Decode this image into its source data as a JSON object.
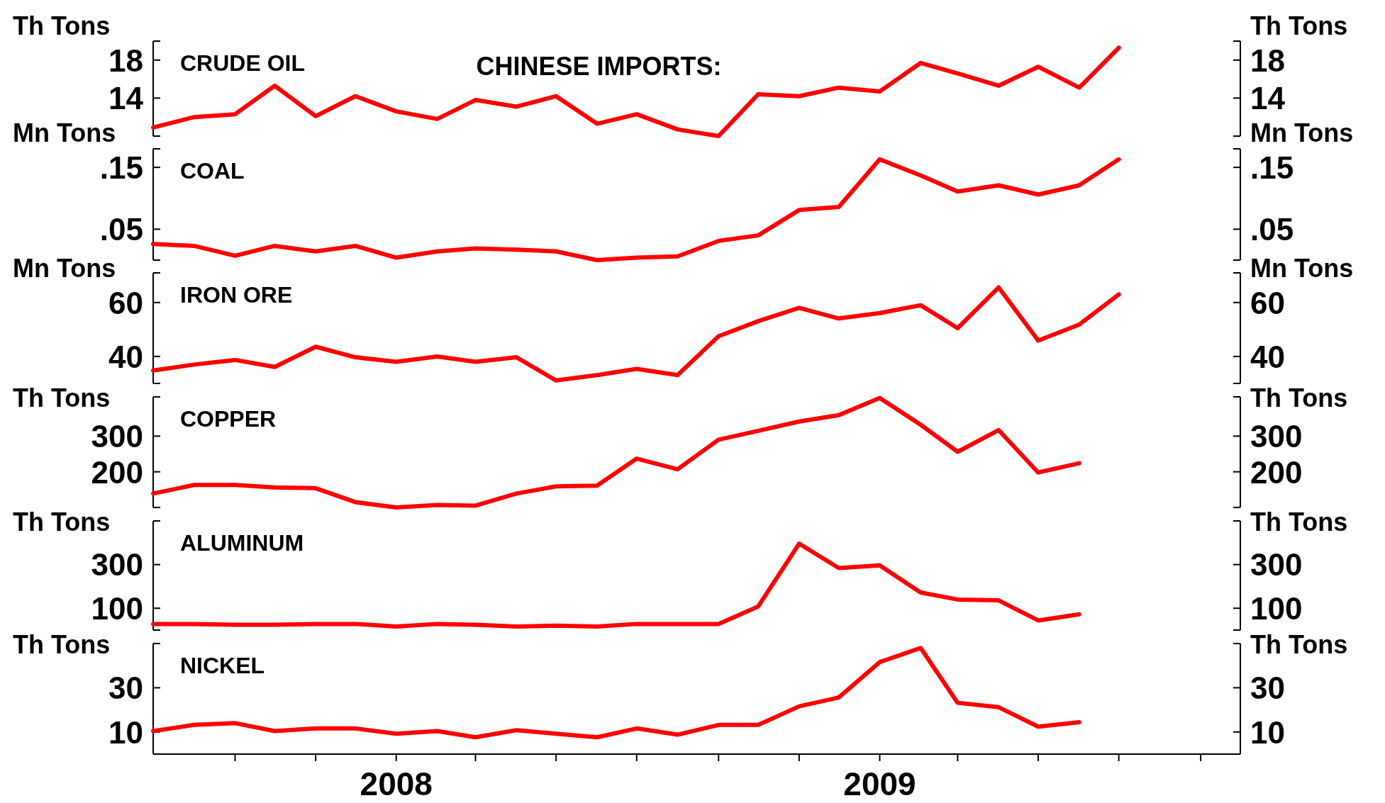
{
  "chart_data": [
    {
      "type": "line",
      "title": "CRUDE OIL",
      "annotations": [
        "CHINESE IMPORTS:"
      ],
      "ylabel": "Th Tons",
      "y2label": "Th Tons",
      "x": [
        "2007-07",
        "2007-08",
        "2007-09",
        "2007-10",
        "2007-11",
        "2007-12",
        "2008-01",
        "2008-02",
        "2008-03",
        "2008-04",
        "2008-05",
        "2008-06",
        "2008-07",
        "2008-08",
        "2008-09",
        "2008-10",
        "2008-11",
        "2008-12",
        "2009-01",
        "2009-02",
        "2009-03",
        "2009-04",
        "2009-05",
        "2009-06",
        "2009-07"
      ],
      "xlim": [
        "2007-07",
        "2009-10"
      ],
      "ylim": [
        10,
        20
      ],
      "yticks": [
        14,
        18
      ],
      "y2lim": [
        10,
        20
      ],
      "y2ticks": [
        14,
        18
      ],
      "tick_labels": "y",
      "series": [
        {
          "color": "#ff0000",
          "values": [
            10.9,
            12.0,
            12.3,
            15.3,
            12.1,
            14.2,
            12.6,
            11.8,
            13.8,
            13.1,
            14.2,
            11.3,
            12.3,
            10.7,
            10.0,
            14.4,
            14.2,
            15.1,
            14.7,
            17.7,
            16.6,
            15.3,
            17.3,
            15.1,
            19.3
          ]
        }
      ]
    },
    {
      "type": "line",
      "title": "COAL",
      "ylabel": "Mn Tons",
      "y2label": "Mn Tons",
      "x": [
        "2007-07",
        "2007-08",
        "2007-09",
        "2007-10",
        "2007-11",
        "2007-12",
        "2008-01",
        "2008-02",
        "2008-03",
        "2008-04",
        "2008-05",
        "2008-06",
        "2008-07",
        "2008-08",
        "2008-09",
        "2008-10",
        "2008-11",
        "2008-12",
        "2009-01",
        "2009-02",
        "2009-03",
        "2009-04",
        "2009-05",
        "2009-06",
        "2009-07"
      ],
      "xlim": [
        "2007-07",
        "2009-10"
      ],
      "ylim": [
        0,
        0.18
      ],
      "yticks": [
        {
          "value": 0.05,
          "label": ".05"
        },
        {
          "value": 0.15,
          "label": ".15"
        }
      ],
      "y2lim": [
        0,
        0.18
      ],
      "y2ticks": [
        {
          "value": 0.05,
          "label": ".05"
        },
        {
          "value": 0.15,
          "label": ".15"
        }
      ],
      "tick_labels": "y",
      "series": [
        {
          "color": "#ff0000",
          "values": [
            0.026,
            0.023,
            0.007,
            0.023,
            0.014,
            0.023,
            0.004,
            0.014,
            0.019,
            0.017,
            0.014,
            0.0,
            0.004,
            0.006,
            0.031,
            0.04,
            0.081,
            0.086,
            0.163,
            0.137,
            0.111,
            0.121,
            0.106,
            0.121,
            0.163
          ]
        }
      ]
    },
    {
      "type": "line",
      "title": "IRON ORE",
      "ylabel": "Mn Tons",
      "y2label": "Mn Tons",
      "x": [
        "2007-07",
        "2007-08",
        "2007-09",
        "2007-10",
        "2007-11",
        "2007-12",
        "2008-01",
        "2008-02",
        "2008-03",
        "2008-04",
        "2008-05",
        "2008-06",
        "2008-07",
        "2008-08",
        "2008-09",
        "2008-10",
        "2008-11",
        "2008-12",
        "2009-01",
        "2009-02",
        "2009-03",
        "2009-04",
        "2009-05",
        "2009-06",
        "2009-07"
      ],
      "xlim": [
        "2007-07",
        "2009-10"
      ],
      "ylim": [
        30,
        71
      ],
      "yticks": [
        40,
        60
      ],
      "y2lim": [
        30,
        71
      ],
      "y2ticks": [
        40,
        60
      ],
      "tick_labels": "y",
      "series": [
        {
          "color": "#ff0000",
          "values": [
            34.8,
            37.0,
            38.7,
            36.1,
            43.6,
            39.7,
            38.0,
            40.0,
            38.0,
            39.7,
            31.1,
            33.1,
            35.4,
            33.1,
            47.5,
            53.1,
            58.0,
            54.1,
            56.1,
            59.0,
            50.5,
            65.6,
            45.9,
            51.8,
            63.0
          ]
        }
      ]
    },
    {
      "type": "line",
      "title": "COPPER",
      "ylabel": "Th Tons",
      "y2label": "Th Tons",
      "xlim": [
        "2007-07",
        "2009-10"
      ],
      "ylim": [
        100,
        410
      ],
      "yticks": [
        200,
        300
      ],
      "y2lim": [
        100,
        410
      ],
      "y2ticks": [
        200,
        300
      ],
      "tick_labels": "y",
      "series": [
        {
          "color": "#ff0000",
          "x": [
            "2007-07",
            "2007-08",
            "2007-09",
            "2007-10",
            "2007-11",
            "2007-12",
            "2008-01",
            "2008-02",
            "2008-03",
            "2008-04",
            "2008-05",
            "2008-06",
            "2008-07",
            "2008-08",
            "2008-09",
            "2008-10",
            "2008-11",
            "2008-12",
            "2009-01",
            "2009-02",
            "2009-03",
            "2009-04",
            "2009-05",
            "2009-06"
          ],
          "values": [
            139,
            163,
            163,
            156,
            154,
            115,
            100,
            107,
            105,
            139,
            159,
            161,
            237,
            207,
            290,
            315,
            341,
            359,
            407,
            332,
            256,
            317,
            198,
            224
          ]
        }
      ]
    },
    {
      "type": "line",
      "title": "ALUMINUM",
      "ylabel": "Th Tons",
      "y2label": "Th Tons",
      "xlim": [
        "2007-07",
        "2009-10"
      ],
      "ylim": [
        0,
        500
      ],
      "yticks": [
        100,
        300
      ],
      "y2lim": [
        0,
        500
      ],
      "y2ticks": [
        100,
        300
      ],
      "tick_labels": "y",
      "series": [
        {
          "color": "#ff0000",
          "x": [
            "2007-07",
            "2007-08",
            "2007-09",
            "2007-10",
            "2007-11",
            "2007-12",
            "2008-01",
            "2008-02",
            "2008-03",
            "2008-04",
            "2008-05",
            "2008-06",
            "2008-07",
            "2008-08",
            "2008-09",
            "2008-10",
            "2008-11",
            "2008-12",
            "2009-01",
            "2009-02",
            "2009-03",
            "2009-04",
            "2009-05",
            "2009-06"
          ],
          "values": [
            28,
            28,
            24,
            24,
            28,
            28,
            16,
            28,
            24,
            16,
            20,
            16,
            28,
            28,
            28,
            108,
            396,
            284,
            296,
            172,
            140,
            136,
            44,
            72
          ]
        }
      ]
    },
    {
      "type": "line",
      "title": "NICKEL",
      "ylabel": "Th Tons",
      "y2label": "Th Tons",
      "xlim": [
        "2007-07",
        "2009-10"
      ],
      "xticks": [
        {
          "value": "2007-09",
          "label": null
        },
        {
          "value": "2007-11",
          "label": null
        },
        {
          "value": "2008-01",
          "label": "2008"
        },
        {
          "value": "2008-03",
          "label": null
        },
        {
          "value": "2008-05",
          "label": null
        },
        {
          "value": "2008-07",
          "label": null
        },
        {
          "value": "2008-09",
          "label": null
        },
        {
          "value": "2008-11",
          "label": null
        },
        {
          "value": "2009-01",
          "label": "2009"
        },
        {
          "value": "2009-03",
          "label": null
        },
        {
          "value": "2009-05",
          "label": null
        },
        {
          "value": "2009-07",
          "label": null
        },
        {
          "value": "2009-09",
          "label": null
        }
      ],
      "ylim": [
        0,
        50
      ],
      "yticks": [
        10,
        30
      ],
      "y2lim": [
        0,
        50
      ],
      "y2ticks": [
        10,
        30
      ],
      "series": [
        {
          "color": "#ff0000",
          "x": [
            "2007-07",
            "2007-08",
            "2007-09",
            "2007-10",
            "2007-11",
            "2007-12",
            "2008-01",
            "2008-02",
            "2008-03",
            "2008-04",
            "2008-05",
            "2008-06",
            "2008-07",
            "2008-08",
            "2008-09",
            "2008-10",
            "2008-11",
            "2008-12",
            "2009-01",
            "2009-02",
            "2009-03",
            "2009-04",
            "2009-05",
            "2009-06"
          ],
          "values": [
            10.4,
            13.2,
            14.0,
            10.4,
            11.6,
            11.6,
            9.2,
            10.4,
            7.6,
            10.8,
            9.2,
            7.6,
            11.6,
            8.8,
            13.2,
            13.2,
            21.6,
            25.6,
            41.6,
            48.0,
            23.2,
            21.2,
            12.4,
            14.4
          ]
        }
      ]
    }
  ]
}
